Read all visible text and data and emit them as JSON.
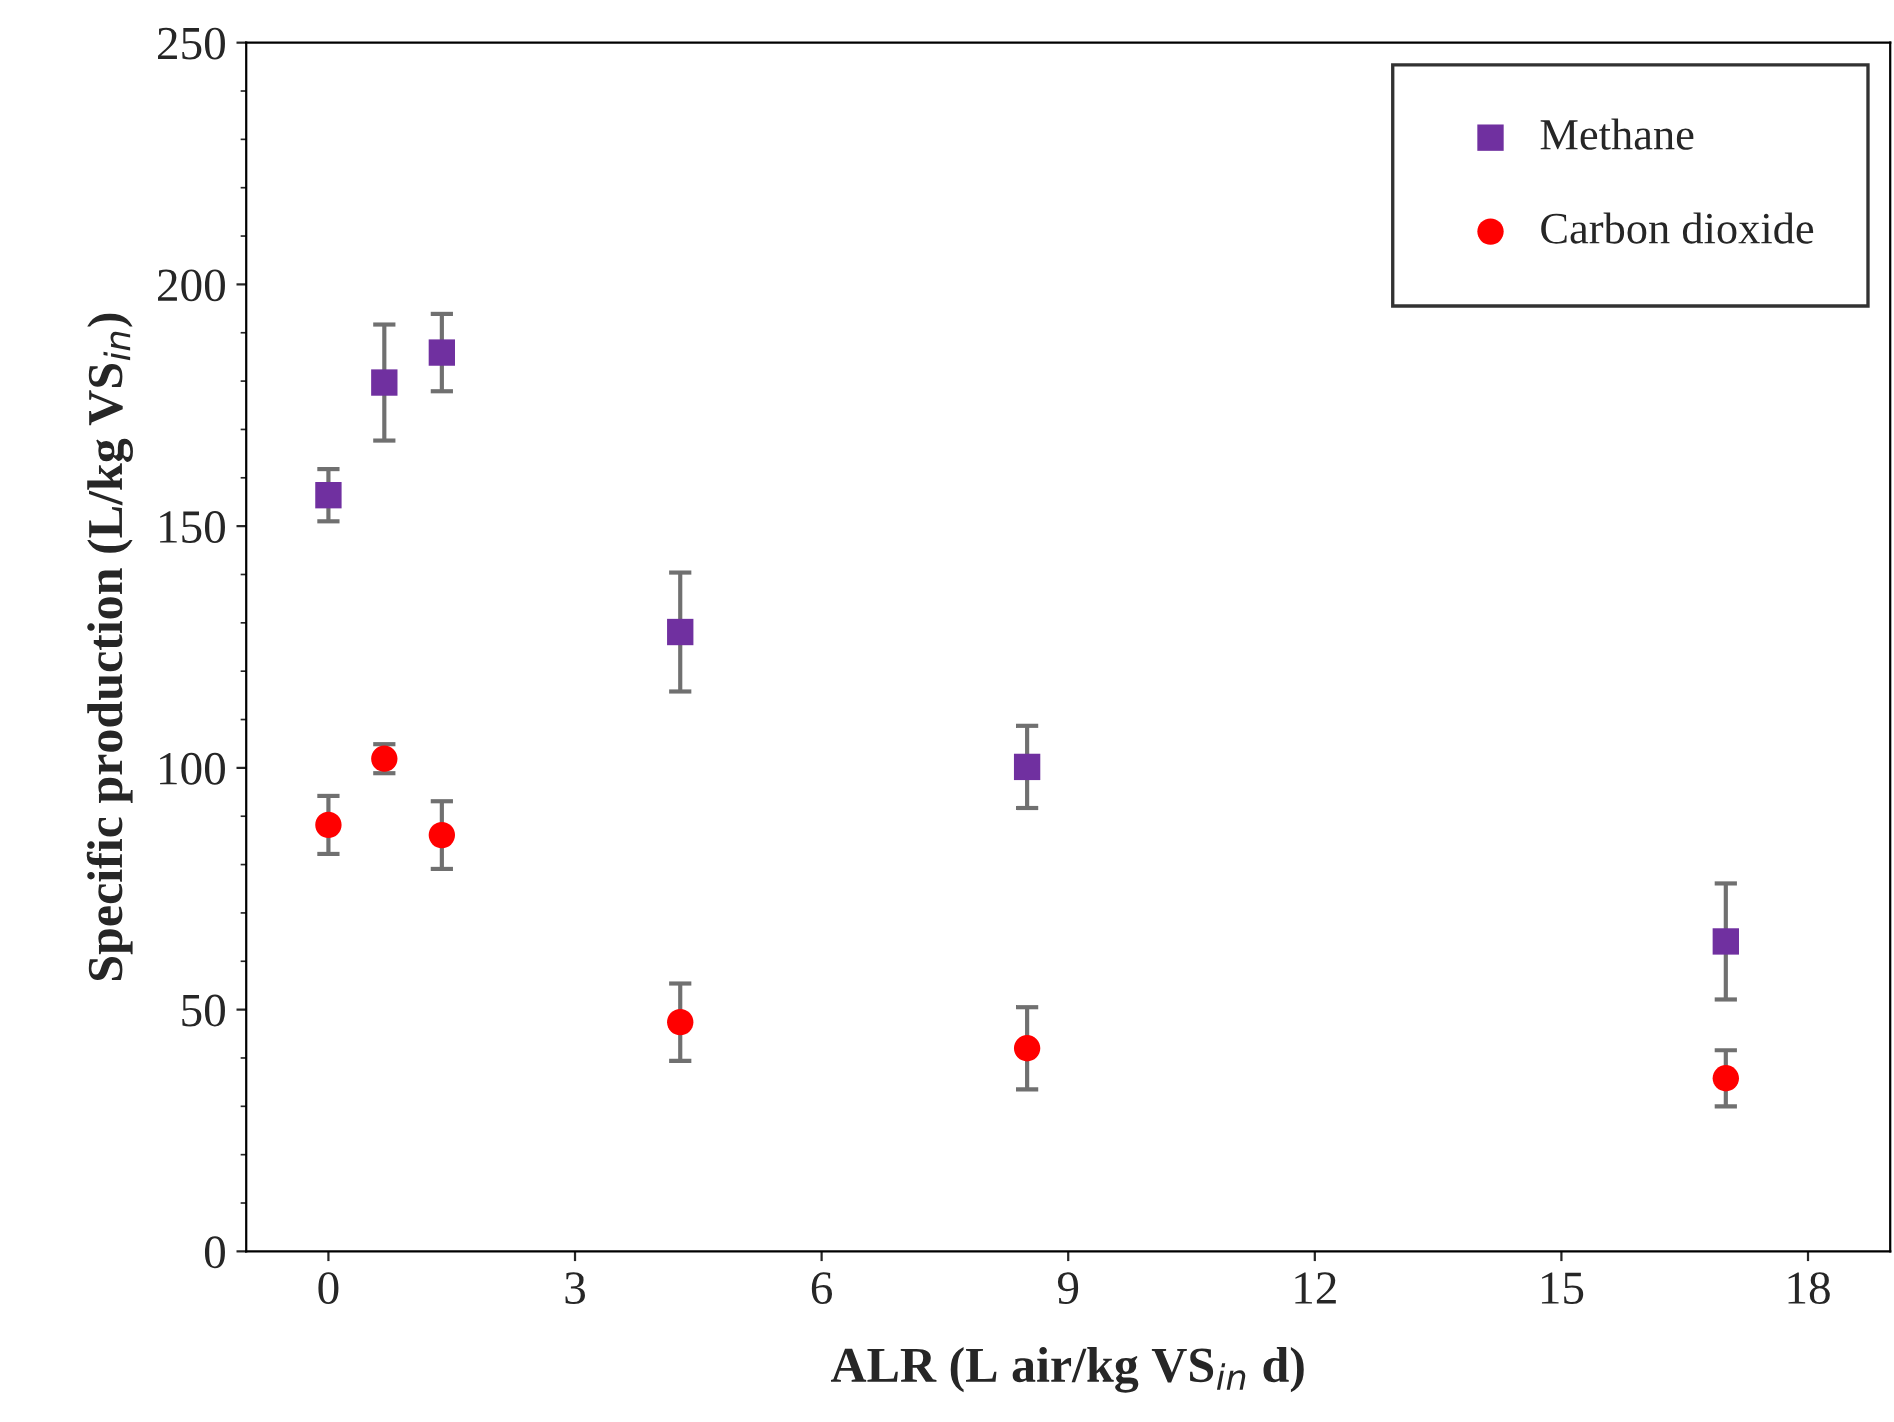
{
  "chart_data": {
    "type": "scatter",
    "xlabel": "ALR (L air/kg VS$_{in}$ d)",
    "ylabel": "Specific production (L/kg VS$_{in}$)",
    "xlim": [
      -1,
      19
    ],
    "xticks": [
      0,
      3,
      6,
      9,
      12,
      15,
      18
    ],
    "ylim": [
      0,
      250
    ],
    "yticks": [
      0,
      50,
      100,
      150,
      200,
      250
    ],
    "grid": false,
    "legend": "top right",
    "series": [
      {
        "name": "Methane",
        "color": "#7030a0",
        "marker": "square",
        "x": [
          0,
          0.68,
          1.38,
          4.28,
          8.5,
          17.0
        ],
        "values": [
          156.4,
          179.7,
          185.9,
          128.1,
          100.2,
          64.1
        ],
        "errors": [
          5.4,
          12,
          8,
          12.3,
          8.5,
          12
        ]
      },
      {
        "name": "Carbon dioxide",
        "color": "#ff0000",
        "marker": "circle",
        "x": [
          0,
          0.68,
          1.38,
          4.28,
          8.5,
          17.0
        ],
        "values": [
          88.2,
          101.9,
          86.1,
          47.4,
          42.0,
          35.8
        ],
        "errors": [
          6,
          3,
          7,
          8,
          8.5,
          5.8
        ]
      }
    ]
  }
}
